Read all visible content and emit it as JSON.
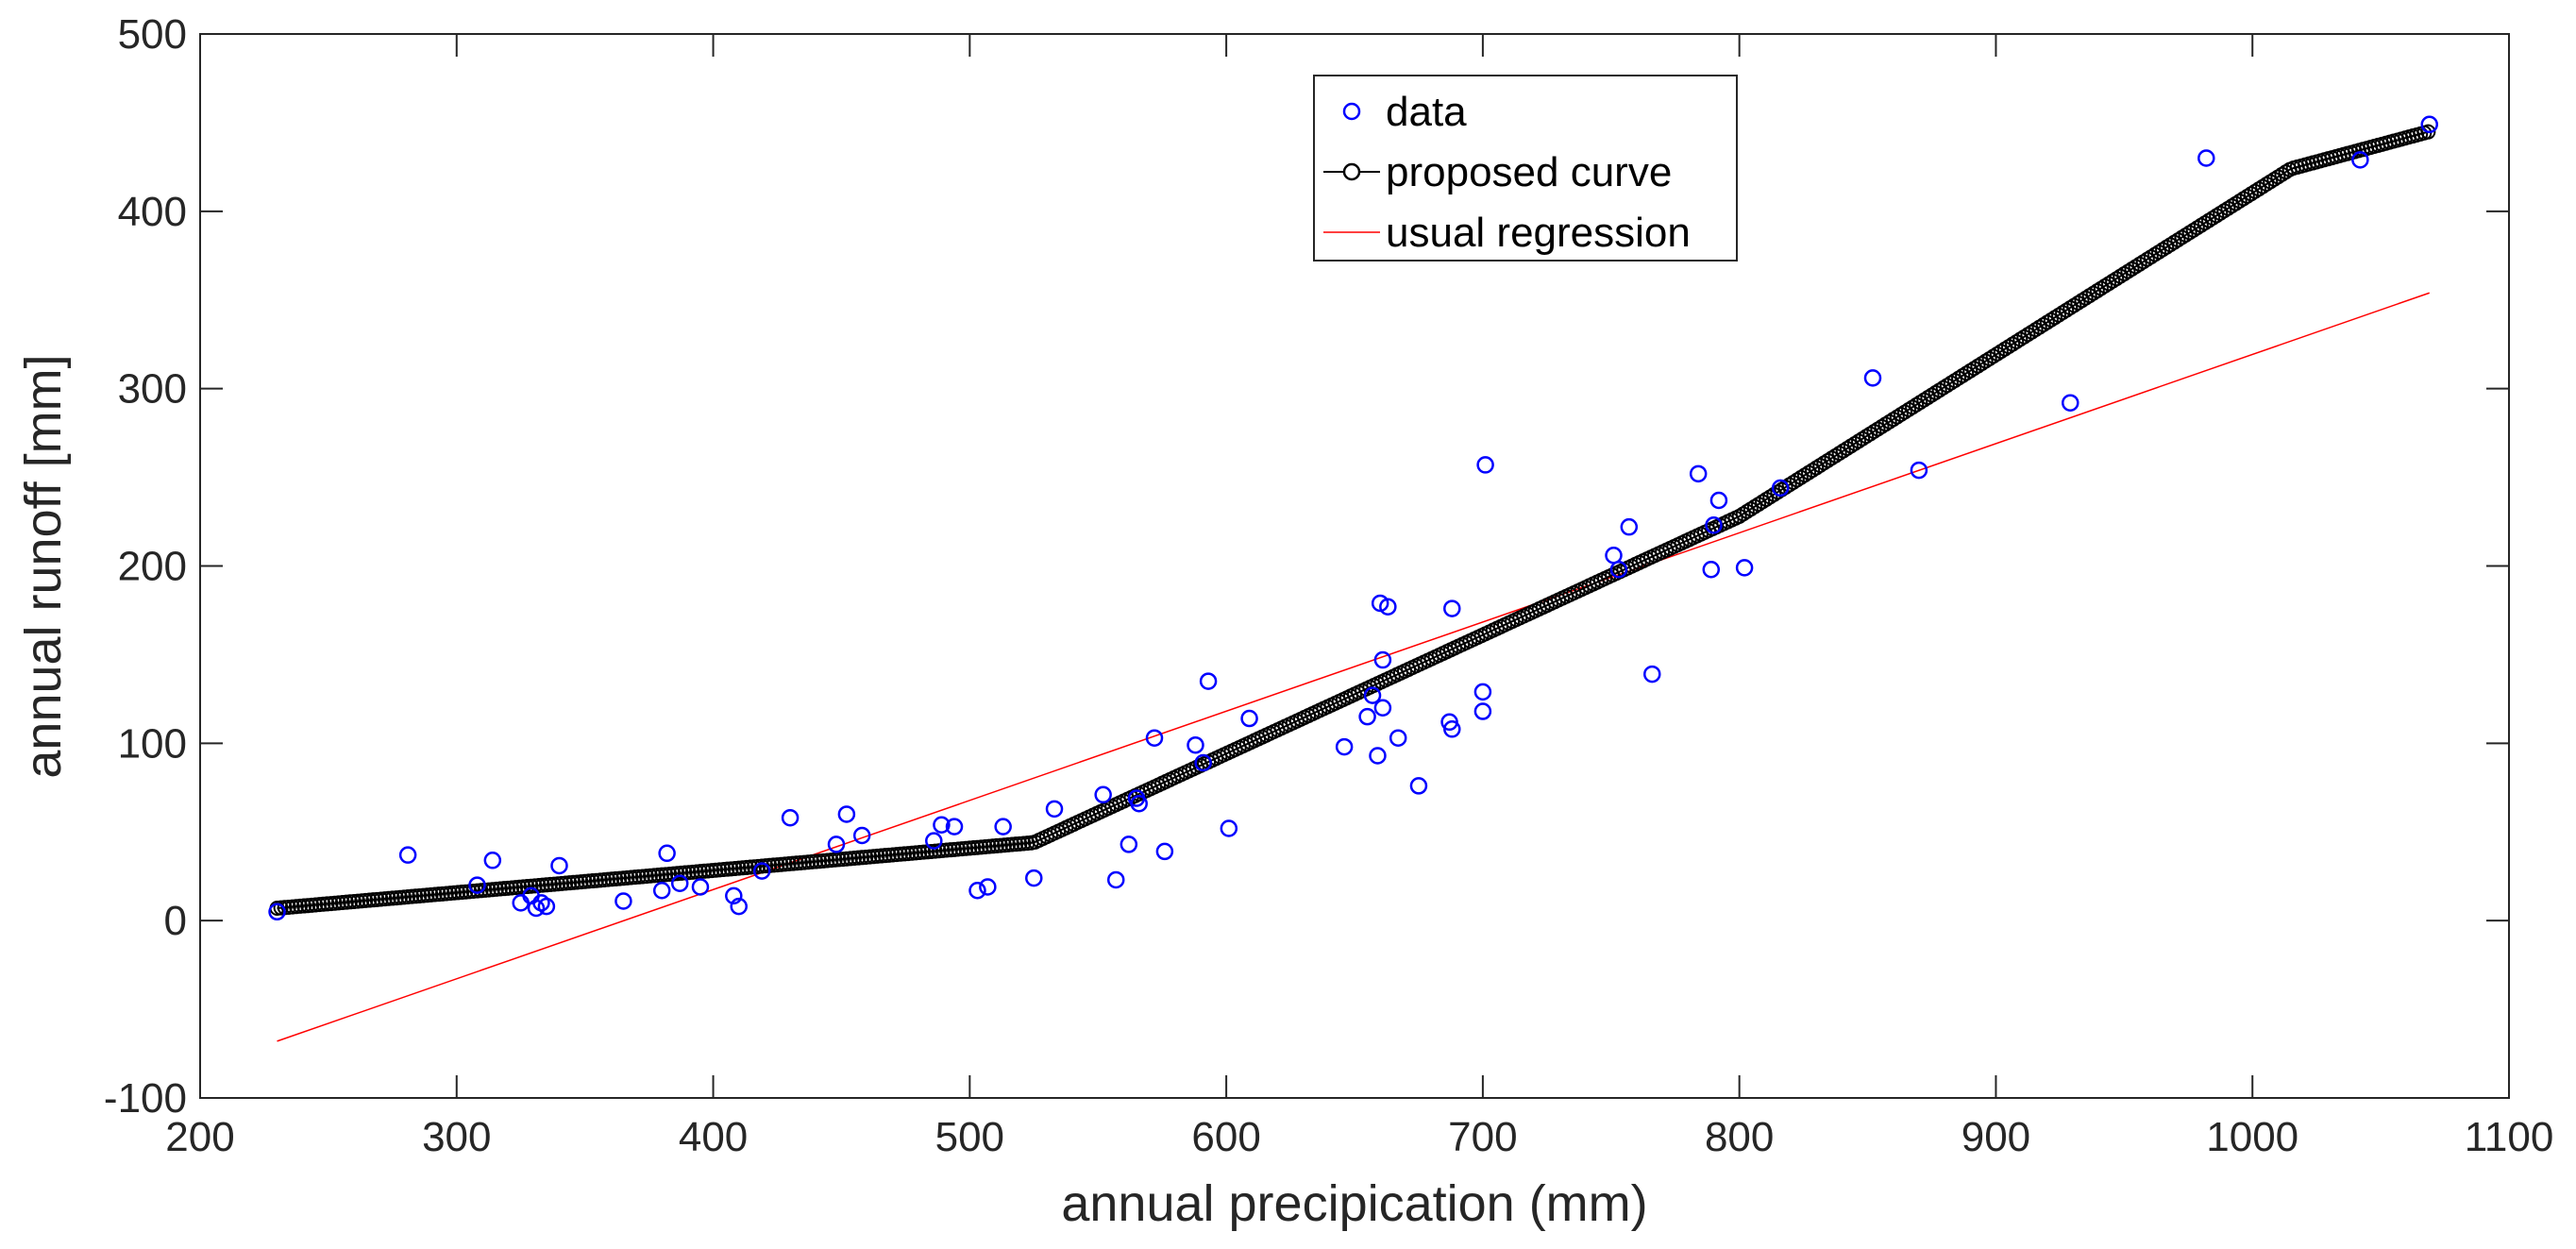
{
  "chart_data": {
    "type": "scatter",
    "title": "",
    "xlabel": "annual precipication (mm)",
    "ylabel": "annual runoff [mm]",
    "xlim": [
      200,
      1100
    ],
    "ylim": [
      -100,
      500
    ],
    "xticks": [
      200,
      300,
      400,
      500,
      600,
      700,
      800,
      900,
      1000,
      1100
    ],
    "yticks": [
      -100,
      0,
      100,
      200,
      300,
      400,
      500
    ],
    "xtick_labels": [
      "200",
      "300",
      "400",
      "500",
      "600",
      "700",
      "800",
      "900",
      "1000",
      "1100"
    ],
    "ytick_labels": [
      "-100",
      "0",
      "100",
      "200",
      "300",
      "400",
      "500"
    ],
    "grid": false,
    "legend_position": "top-center",
    "legend": [
      "data",
      "proposed curve",
      "usual regression"
    ],
    "colors": {
      "data": "#0000ff",
      "proposed_curve": "#000000",
      "usual_regression": "#ff0000",
      "axis": "#262626"
    },
    "series": [
      {
        "name": "data",
        "kind": "scatter",
        "points": [
          [
            230,
            5
          ],
          [
            281,
            37
          ],
          [
            308,
            20
          ],
          [
            314,
            34
          ],
          [
            325,
            10
          ],
          [
            329,
            14
          ],
          [
            331,
            7
          ],
          [
            333,
            10
          ],
          [
            335,
            8
          ],
          [
            340,
            31
          ],
          [
            365,
            11
          ],
          [
            380,
            17
          ],
          [
            382,
            38
          ],
          [
            387,
            21
          ],
          [
            395,
            19
          ],
          [
            408,
            14
          ],
          [
            410,
            8
          ],
          [
            419,
            28
          ],
          [
            430,
            58
          ],
          [
            448,
            43
          ],
          [
            452,
            60
          ],
          [
            458,
            48
          ],
          [
            486,
            45
          ],
          [
            489,
            54
          ],
          [
            494,
            53
          ],
          [
            503,
            17
          ],
          [
            507,
            19
          ],
          [
            513,
            53
          ],
          [
            525,
            24
          ],
          [
            533,
            63
          ],
          [
            552,
            71
          ],
          [
            557,
            23
          ],
          [
            562,
            43
          ],
          [
            565,
            69
          ],
          [
            566,
            66
          ],
          [
            572,
            103
          ],
          [
            576,
            39
          ],
          [
            588,
            99
          ],
          [
            591,
            89
          ],
          [
            593,
            135
          ],
          [
            601,
            52
          ],
          [
            609,
            114
          ],
          [
            646,
            98
          ],
          [
            655,
            115
          ],
          [
            657,
            127
          ],
          [
            659,
            93
          ],
          [
            660,
            179
          ],
          [
            661,
            120
          ],
          [
            661,
            147
          ],
          [
            663,
            177
          ],
          [
            667,
            103
          ],
          [
            675,
            76
          ],
          [
            687,
            112
          ],
          [
            688,
            108
          ],
          [
            688,
            176
          ],
          [
            700,
            129
          ],
          [
            700,
            118
          ],
          [
            701,
            257
          ],
          [
            751,
            206
          ],
          [
            753,
            198
          ],
          [
            757,
            222
          ],
          [
            766,
            139
          ],
          [
            784,
            252
          ],
          [
            789,
            198
          ],
          [
            790,
            223
          ],
          [
            792,
            237
          ],
          [
            802,
            199
          ],
          [
            816,
            244
          ],
          [
            852,
            306
          ],
          [
            870,
            254
          ],
          [
            929,
            292
          ],
          [
            982,
            430
          ],
          [
            1042,
            429
          ],
          [
            1069,
            449
          ]
        ]
      },
      {
        "name": "proposed curve",
        "kind": "line-with-markers",
        "breakpoints": [
          [
            230,
            7
          ],
          [
            525,
            44
          ],
          [
            800,
            228
          ],
          [
            1015,
            424
          ],
          [
            1069,
            445
          ]
        ],
        "marker_step": 1.5
      },
      {
        "name": "usual regression",
        "kind": "line",
        "points": [
          [
            230,
            -68
          ],
          [
            1069,
            354
          ]
        ]
      }
    ]
  }
}
